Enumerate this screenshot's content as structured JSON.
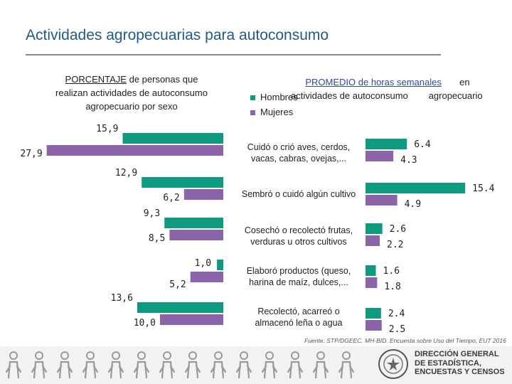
{
  "title": "Actividades agropecuarias para autoconsumo",
  "left_heading": {
    "underlined": "PORCENTAJE",
    "rest_line1": " de personas que",
    "line2": "realizan actividades de autoconsumo",
    "line3": "agropecuario por sexo"
  },
  "right_heading": {
    "underlined": "PROMEDIO de horas semanales",
    "word_en": "en",
    "line2a": "actividades de autoconsumo",
    "line2b": "agropecuario"
  },
  "legend": [
    {
      "name": "Hombres",
      "color": "#0e9a7e"
    },
    {
      "name": "Mujeres",
      "color": "#8c64aa"
    }
  ],
  "categories": [
    {
      "line1": "Cuidó o crió aves, cerdos,",
      "line2": "vacas, cabras, ovejas,..."
    },
    {
      "line1": "Sembró o cuidó algún cultivo",
      "line2": ""
    },
    {
      "line1": "Cosechó o recolectó frutas,",
      "line2": "verduras u otros cultivos"
    },
    {
      "line1": "Elaboró productos (queso,",
      "line2": "harina de maíz, dulces,..."
    },
    {
      "line1": "Recolectó, acarreó o",
      "line2": "almacenó leña o agua"
    }
  ],
  "chart_data": [
    {
      "type": "bar",
      "orientation": "horizontal",
      "title": "PORCENTAJE de personas que realizan actividades de autoconsumo agropecuario por sexo",
      "categories": [
        "Cuidó o crió aves, cerdos, vacas, cabras, ovejas,...",
        "Sembró o cuidó algún cultivo",
        "Cosechó o recolectó frutas, verduras u otros cultivos",
        "Elaboró productos (queso, harina de maíz, dulces,...",
        "Recolectó, acarreó o almacenó leña o agua"
      ],
      "series": [
        {
          "name": "Hombres",
          "values": [
            15.9,
            12.9,
            9.3,
            1.0,
            13.6
          ],
          "labels": [
            "15,9",
            "12,9",
            "9,3",
            "1,0",
            "13,6"
          ]
        },
        {
          "name": "Mujeres",
          "values": [
            27.9,
            6.2,
            8.5,
            5.2,
            10.0
          ],
          "labels": [
            "27,9",
            "6,2",
            "8,5",
            "5,2",
            "10,0"
          ]
        }
      ]
    },
    {
      "type": "bar",
      "orientation": "horizontal",
      "title": "PROMEDIO de horas semanales en actividades de autoconsumo agropecuario",
      "categories": [
        "Cuidó o crió aves, cerdos, vacas, cabras, ovejas,...",
        "Sembró o cuidó algún cultivo",
        "Cosechó o recolectó frutas, verduras u otros cultivos",
        "Elaboró productos (queso, harina de maíz, dulces,...",
        "Recolectó, acarreó o almacenó leña o agua"
      ],
      "series": [
        {
          "name": "Hombres",
          "values": [
            6.4,
            15.4,
            2.6,
            1.6,
            2.4
          ],
          "labels": [
            "6.4",
            "15.4",
            "2.6",
            "1.6",
            "2.4"
          ]
        },
        {
          "name": "Mujeres",
          "values": [
            4.3,
            4.9,
            2.2,
            1.8,
            2.5
          ],
          "labels": [
            "4.3",
            "4.9",
            "2.2",
            "1.8",
            "2.5"
          ]
        }
      ]
    }
  ],
  "source": "Fuente: STP/DGEEC. MH-BID. Encuesta sobre Uso del Tiempo, EUT 2016",
  "footer_icons": [
    "person-icon",
    "cleaning-icon",
    "cooking-icon",
    "laundry-icon",
    "childcare-icon",
    "running-icon",
    "reading-icon",
    "wheelchair-icon",
    "caregiving-icon",
    "elder-icon",
    "gardening-icon",
    "sewing-icon",
    "volunteer-icon",
    "family-icon"
  ],
  "org": {
    "line1": "DIRECCIÓN GENERAL",
    "line2": "DE ESTADÍSTICA,",
    "line3": "ENCUESTAS Y CENSOS"
  }
}
